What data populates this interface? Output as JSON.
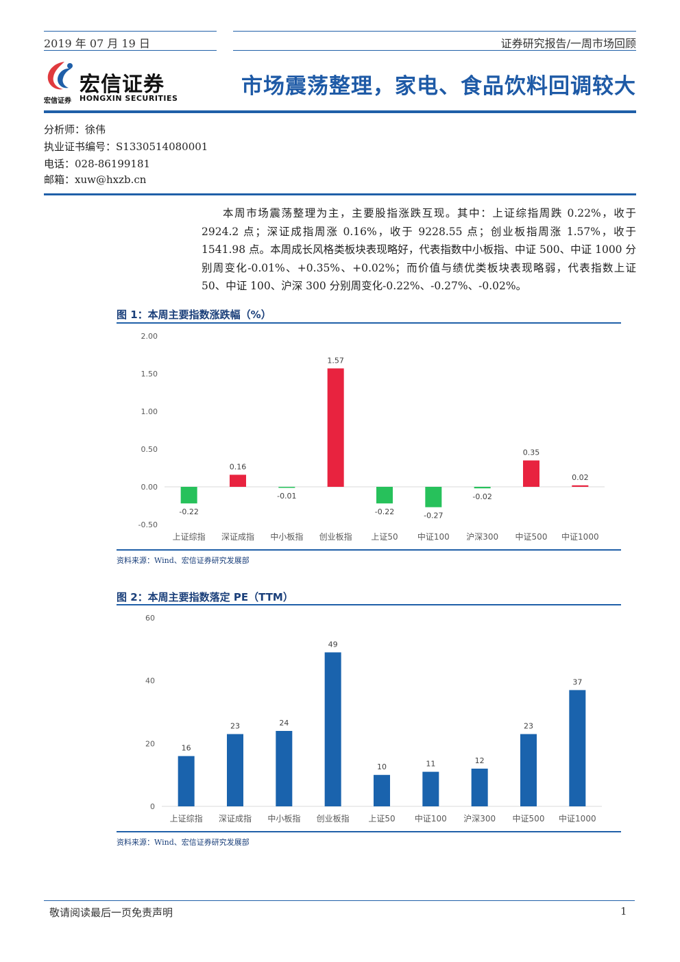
{
  "header": {
    "date": "2019 年 07 月 19 日",
    "report_type": "证券研究报告/一周市场回顾"
  },
  "logo": {
    "name_cn": "宏信证券",
    "sub_cn": "宏信证券",
    "name_en": "HONGXIN SECURITIES",
    "colors": {
      "red": "#e03a3e",
      "blue": "#1f5fa8"
    }
  },
  "title": "市场震荡整理，家电、食品饮料回调较大",
  "analyst": {
    "name_line": "分析师：徐伟",
    "cert_line": "执业证书编号：S1330514080001",
    "phone_line": "电话：028-86199181",
    "email_line": "邮箱：xuw@hxzb.cn"
  },
  "summary": "本周市场震荡整理为主，主要股指涨跌互现。其中：上证综指周跌 0.22%，收于 2924.2 点；深证成指周涨 0.16%，收于 9228.55 点；创业板指周涨 1.57%，收于 1541.98 点。本周成长风格类板块表现略好，代表指数中小板指、中证 500、中证 1000 分别周变化-0.01%、+0.35%、+0.02%；而价值与绩优类板块表现略弱，代表指数上证 50、中证 100、沪深 300 分别周变化-0.22%、-0.27%、-0.02%。",
  "figures": {
    "fig1_title": "图 1：本周主要指数涨跌幅（%）",
    "fig1_source": "资料来源：Wind、宏信证券研究发展部",
    "fig2_title": "图 2：本周主要指数落定 PE（TTM）",
    "fig2_source": "资料来源：Wind、宏信证券研究发展部"
  },
  "chart_data": [
    {
      "type": "bar",
      "categories": [
        "上证综指",
        "深证成指",
        "中小板指",
        "创业板指",
        "上证50",
        "中证100",
        "沪深300",
        "中证500",
        "中证1000"
      ],
      "values": [
        -0.22,
        0.16,
        -0.01,
        1.57,
        -0.22,
        -0.27,
        -0.02,
        0.35,
        0.02
      ],
      "value_labels": [
        "-0.22",
        "0.16",
        "-0.01",
        "1.57",
        "-0.22",
        "-0.27",
        "-0.02",
        "0.35",
        "0.02"
      ],
      "ylim": [
        -0.5,
        2.0
      ],
      "yticks": [
        "2.00",
        "1.50",
        "1.00",
        "0.50",
        "0.00",
        "-0.50"
      ],
      "ytick_values": [
        2.0,
        1.5,
        1.0,
        0.5,
        0.0,
        -0.5
      ],
      "grid": false,
      "colors": {
        "positive": "#e8233f",
        "negative": "#27c15b"
      }
    },
    {
      "type": "bar",
      "categories": [
        "上证综指",
        "深证成指",
        "中小板指",
        "创业板指",
        "上证50",
        "中证100",
        "沪深300",
        "中证500",
        "中证1000"
      ],
      "values": [
        16,
        23,
        24,
        49,
        10,
        11,
        12,
        23,
        37
      ],
      "value_labels": [
        "16",
        "23",
        "24",
        "49",
        "10",
        "11",
        "12",
        "23",
        "37"
      ],
      "ylim": [
        0,
        60
      ],
      "yticks": [
        "60",
        "40",
        "20",
        "0"
      ],
      "ytick_values": [
        60,
        40,
        20,
        0
      ],
      "grid": false,
      "colors": {
        "bar": "#1a63ad"
      }
    }
  ],
  "footer": {
    "disclaimer": "敬请阅读最后一页免责声明",
    "page": "1"
  }
}
